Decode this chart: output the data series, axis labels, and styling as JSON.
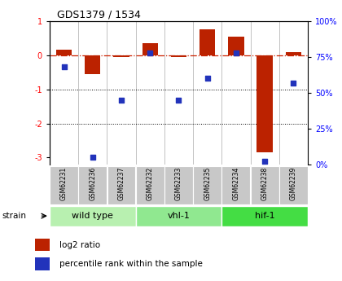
{
  "title": "GDS1379 / 1534",
  "samples": [
    "GSM62231",
    "GSM62236",
    "GSM62237",
    "GSM62232",
    "GSM62233",
    "GSM62235",
    "GSM62234",
    "GSM62238",
    "GSM62239"
  ],
  "log2_ratio": [
    0.15,
    -0.55,
    -0.05,
    0.35,
    -0.05,
    0.75,
    0.55,
    -2.85,
    0.1
  ],
  "percentile_rank": [
    68,
    5,
    45,
    78,
    45,
    60,
    78,
    2,
    57
  ],
  "groups": [
    {
      "name": "wild type",
      "indices": [
        0,
        1,
        2
      ],
      "color": "#b8f0b0"
    },
    {
      "name": "vhl-1",
      "indices": [
        3,
        4,
        5
      ],
      "color": "#90e890"
    },
    {
      "name": "hif-1",
      "indices": [
        6,
        7,
        8
      ],
      "color": "#44dd44"
    }
  ],
  "ylim_left": [
    -3.2,
    1.0
  ],
  "ylim_right": [
    0,
    100
  ],
  "yticks_left": [
    -3,
    -2,
    -1,
    0,
    1
  ],
  "yticks_right": [
    0,
    25,
    50,
    75,
    100
  ],
  "yticklabels_right": [
    "0%",
    "25%",
    "50%",
    "75%",
    "100%"
  ],
  "bar_color_red": "#bb2200",
  "dot_color_blue": "#2233bb",
  "hline_color": "#cc2200",
  "dotted_color": "#000000",
  "bg_color": "#ffffff",
  "label_bg": "#c8c8c8",
  "legend_red_label": "log2 ratio",
  "legend_blue_label": "percentile rank within the sample"
}
